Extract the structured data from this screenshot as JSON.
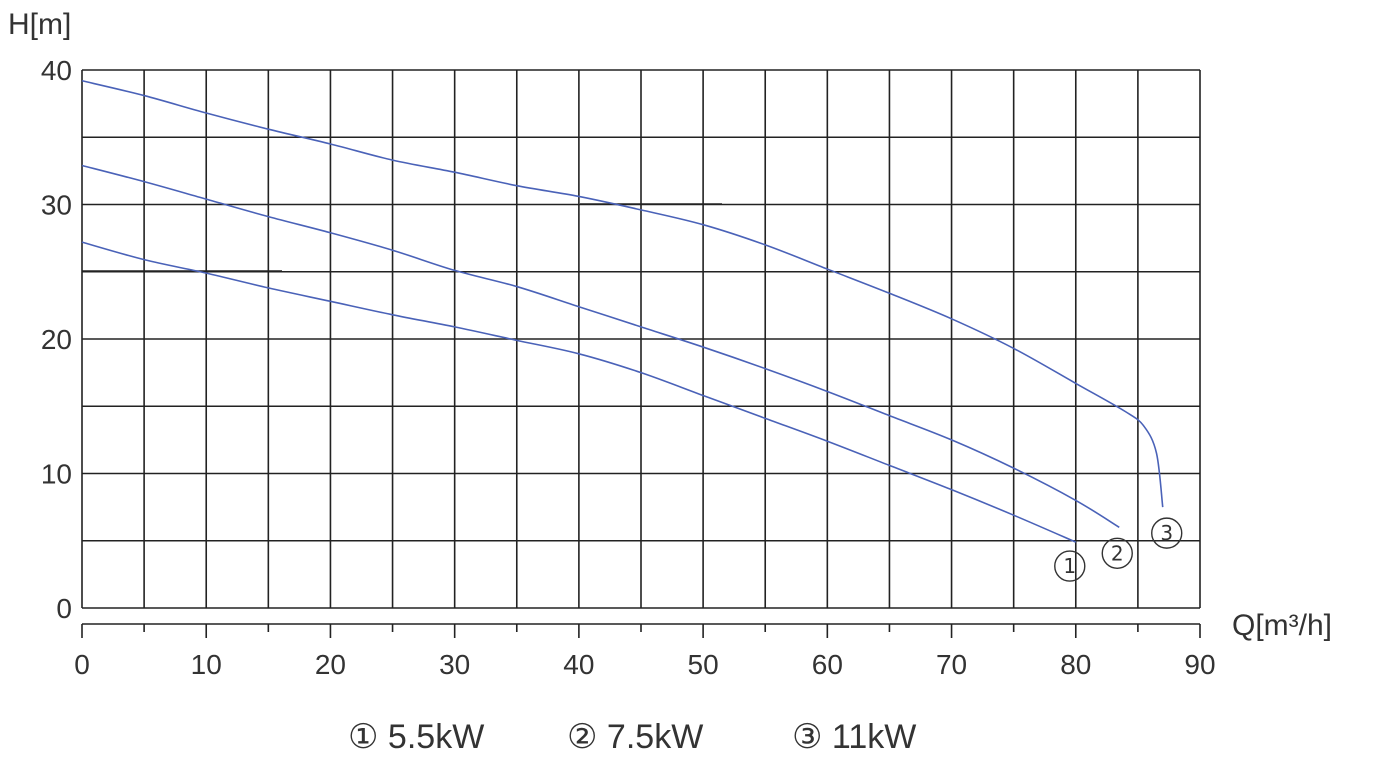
{
  "chart_data": {
    "type": "line",
    "xlabel": "Q[m³/h]",
    "ylabel": "H[m]",
    "xlim": [
      0,
      90
    ],
    "ylim": [
      0,
      40
    ],
    "x_ticks": [
      0,
      10,
      20,
      30,
      40,
      50,
      60,
      70,
      80,
      90
    ],
    "y_ticks": [
      0,
      10,
      20,
      30,
      40
    ],
    "grid": true,
    "legend_position": "bottom",
    "legend_entries": [
      "① 5.5kW",
      "② 7.5kW",
      "③ 11kW"
    ],
    "line_color": "#4a62b8",
    "series": [
      {
        "marker": "①",
        "name": "5.5kW",
        "x": [
          0,
          5,
          10,
          15,
          20,
          25,
          30,
          35,
          40,
          45,
          50,
          55,
          60,
          65,
          70,
          75,
          80
        ],
        "y": [
          27.2,
          25.9,
          24.9,
          23.8,
          22.8,
          21.8,
          20.9,
          19.9,
          18.9,
          17.5,
          15.8,
          14.1,
          12.4,
          10.6,
          8.8,
          6.9,
          4.9
        ]
      },
      {
        "marker": "②",
        "name": "7.5kW",
        "x": [
          0,
          5,
          10,
          15,
          20,
          25,
          30,
          35,
          40,
          45,
          50,
          55,
          60,
          65,
          70,
          75,
          80,
          83.5
        ],
        "y": [
          32.9,
          31.7,
          30.4,
          29.1,
          27.9,
          26.6,
          25.1,
          23.9,
          22.4,
          20.9,
          19.4,
          17.8,
          16.1,
          14.3,
          12.5,
          10.4,
          8.0,
          6.0
        ]
      },
      {
        "marker": "③",
        "name": "11kW",
        "x": [
          0,
          5,
          10,
          15,
          20,
          25,
          30,
          35,
          40,
          45,
          50,
          55,
          60,
          65,
          70,
          75,
          80,
          84,
          85.5,
          86.5,
          87
        ],
        "y": [
          39.2,
          38.1,
          36.8,
          35.6,
          34.5,
          33.3,
          32.4,
          31.4,
          30.6,
          29.6,
          28.5,
          27.0,
          25.2,
          23.4,
          21.5,
          19.3,
          16.7,
          14.6,
          13.5,
          11.5,
          7.5
        ]
      }
    ]
  }
}
